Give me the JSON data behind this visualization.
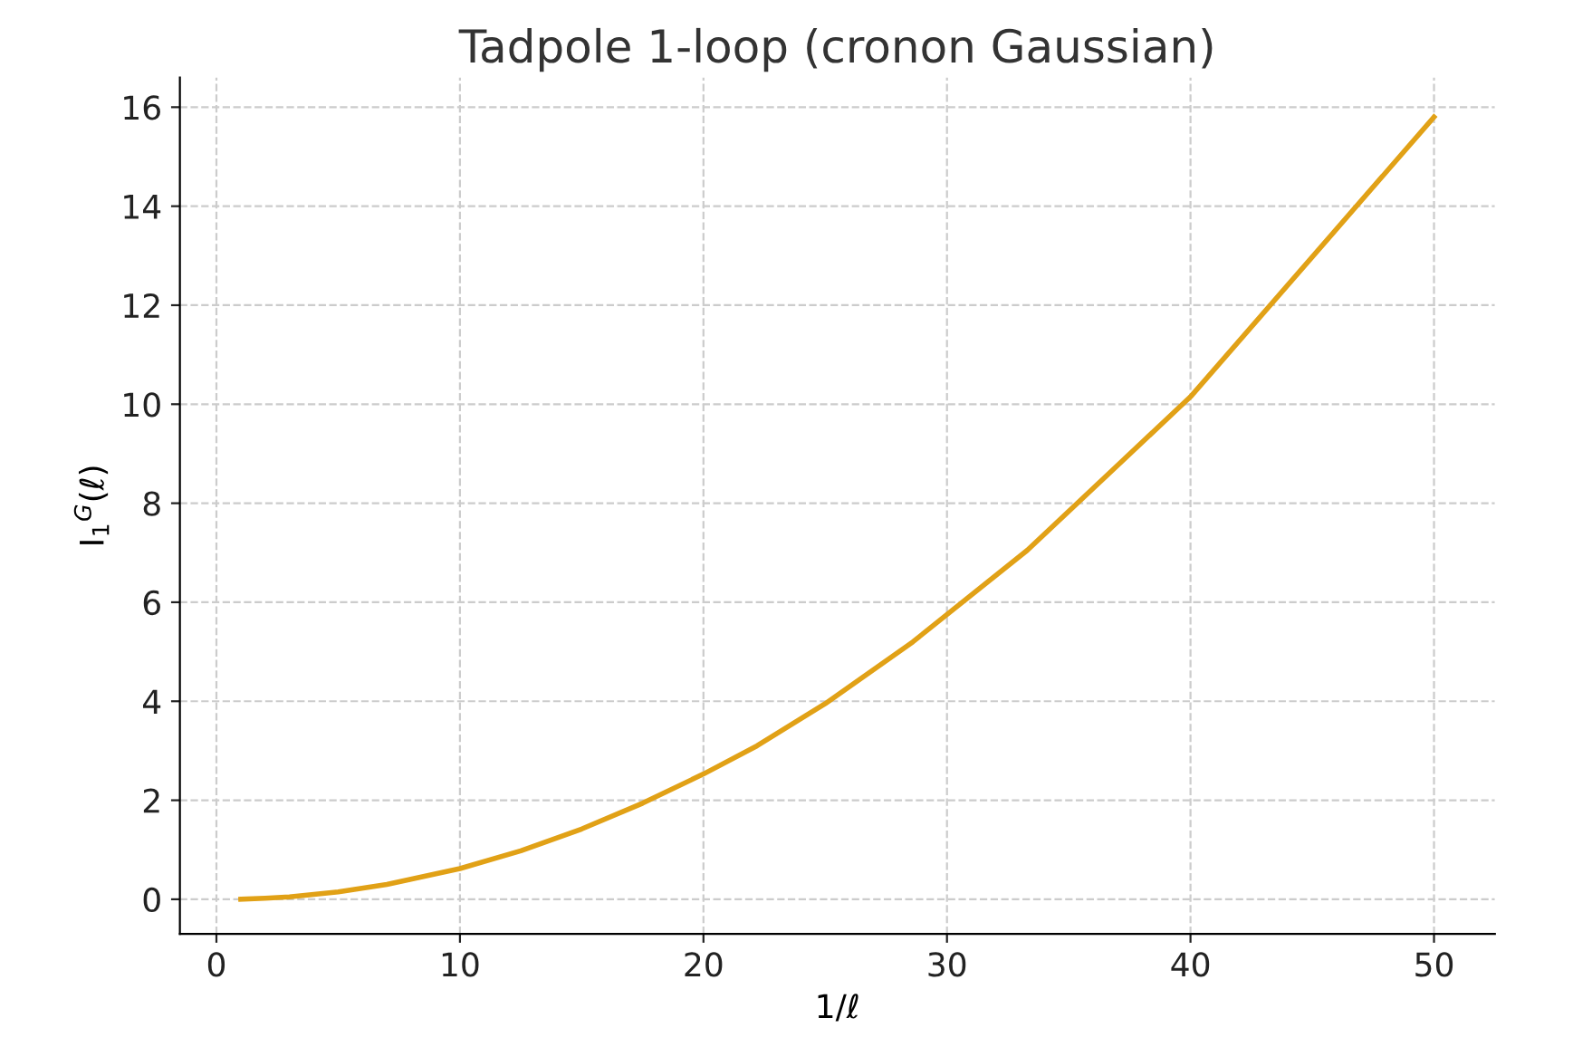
{
  "chart_data": {
    "type": "line",
    "title": "Tadpole 1-loop (cronon Gaussian)",
    "xlabel": "1/ℓ",
    "ylabel": "I$_{1}$$^{G}$(ℓ)",
    "x": [
      1,
      2,
      3,
      5,
      7,
      10,
      12.5,
      15,
      17.5,
      20,
      22.2,
      25,
      28.6,
      33.3,
      40,
      50
    ],
    "series": [
      {
        "color": "#e1a116",
        "values": [
          0,
          0.02,
          0.05,
          0.15,
          0.3,
          0.62,
          0.98,
          1.42,
          1.94,
          2.53,
          3.1,
          3.95,
          5.2,
          7.05,
          10.15,
          15.8
        ]
      }
    ],
    "xlim": [
      -1.5,
      52.5
    ],
    "ylim": [
      -0.7,
      16.6
    ],
    "xticks": [
      0,
      10,
      20,
      30,
      40,
      50
    ],
    "yticks": [
      0,
      2,
      4,
      6,
      8,
      10,
      12,
      14,
      16
    ],
    "grid": true,
    "marker": "none",
    "line_style": "solid"
  }
}
